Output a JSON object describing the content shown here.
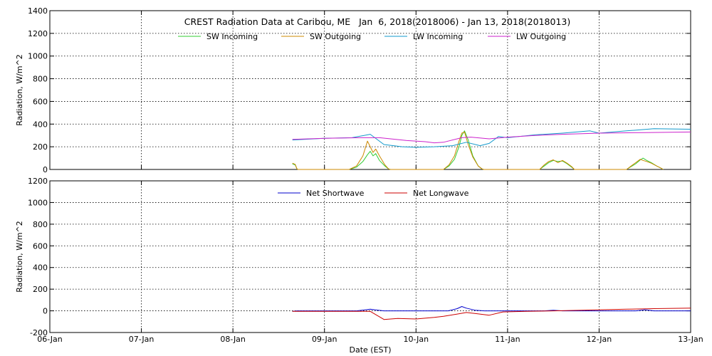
{
  "chart_data": [
    {
      "type": "line",
      "title": "CREST Radiation Data at Caribou, ME   Jan  6, 2018(2018006) - Jan 13, 2018(2018013)",
      "xlabel": "",
      "ylabel": "Radiation, W/m^2",
      "xlim": [
        0,
        7
      ],
      "ylim": [
        0,
        1400
      ],
      "yticks": [
        0,
        200,
        400,
        600,
        800,
        1000,
        1200,
        1400
      ],
      "x_tick_labels": [
        "06-Jan",
        "07-Jan",
        "08-Jan",
        "09-Jan",
        "10-Jan",
        "11-Jan",
        "12-Jan",
        "13-Jan"
      ],
      "grid": true,
      "legend": "top-center",
      "series": [
        {
          "name": "SW Incoming",
          "color": "#33cc33",
          "x": [
            2.65,
            2.68,
            2.7,
            2.71,
            3.27,
            3.35,
            3.42,
            3.47,
            3.5,
            3.53,
            3.56,
            3.6,
            3.66,
            3.7,
            3.72,
            4.3,
            4.36,
            4.42,
            4.47,
            4.5,
            4.53,
            4.57,
            4.62,
            4.68,
            4.72,
            4.74,
            5.35,
            5.4,
            5.45,
            5.5,
            5.55,
            5.6,
            5.65,
            5.7,
            5.73,
            6.3,
            6.35,
            6.4,
            6.45,
            6.48,
            6.52,
            6.57,
            6.63,
            6.68,
            6.7
          ],
          "y": [
            50,
            40,
            5,
            0,
            0,
            20,
            70,
            130,
            160,
            120,
            140,
            80,
            30,
            5,
            0,
            0,
            30,
            90,
            200,
            300,
            340,
            260,
            120,
            30,
            5,
            0,
            0,
            30,
            60,
            80,
            70,
            75,
            50,
            20,
            0,
            0,
            25,
            50,
            85,
            100,
            80,
            60,
            30,
            10,
            0
          ]
        },
        {
          "name": "SW Outgoing",
          "color": "#cc8800",
          "x": [
            2.65,
            2.68,
            2.7,
            2.71,
            3.27,
            3.35,
            3.42,
            3.47,
            3.5,
            3.53,
            3.56,
            3.6,
            3.66,
            3.7,
            3.72,
            4.3,
            4.36,
            4.42,
            4.47,
            4.5,
            4.53,
            4.57,
            4.62,
            4.68,
            4.72,
            4.74,
            5.35,
            5.4,
            5.45,
            5.5,
            5.55,
            5.6,
            5.65,
            5.7,
            5.73,
            6.3,
            6.35,
            6.4,
            6.45,
            6.48,
            6.52,
            6.57,
            6.63,
            6.68,
            6.7
          ],
          "y": [
            55,
            45,
            5,
            0,
            0,
            30,
            120,
            250,
            200,
            150,
            180,
            120,
            40,
            5,
            0,
            0,
            40,
            120,
            250,
            320,
            330,
            220,
            110,
            30,
            5,
            0,
            0,
            40,
            70,
            85,
            60,
            80,
            55,
            25,
            0,
            0,
            30,
            60,
            90,
            80,
            70,
            55,
            30,
            10,
            0
          ]
        },
        {
          "name": "LW Incoming",
          "color": "#1199cc",
          "x": [
            2.65,
            3.0,
            3.3,
            3.5,
            3.65,
            3.85,
            4.0,
            4.2,
            4.4,
            4.55,
            4.7,
            4.8,
            4.9,
            5.0,
            5.3,
            5.6,
            5.9,
            6.0,
            6.3,
            6.6,
            7.0
          ],
          "y": [
            260,
            275,
            280,
            310,
            220,
            200,
            195,
            200,
            210,
            240,
            210,
            230,
            290,
            280,
            305,
            320,
            340,
            320,
            340,
            360,
            355
          ]
        },
        {
          "name": "LW Outgoing",
          "color": "#cc22cc",
          "x": [
            2.65,
            3.0,
            3.4,
            3.6,
            3.9,
            4.1,
            4.2,
            4.3,
            4.5,
            4.6,
            4.8,
            5.0,
            5.3,
            5.6,
            6.0,
            6.5,
            7.0
          ],
          "y": [
            265,
            275,
            280,
            280,
            255,
            245,
            235,
            240,
            280,
            285,
            270,
            285,
            300,
            310,
            320,
            325,
            330
          ]
        }
      ]
    },
    {
      "type": "line",
      "title": "",
      "xlabel": "Date (EST)",
      "ylabel": "Radiation, W/m^2",
      "xlim": [
        0,
        7
      ],
      "ylim": [
        -200,
        1200
      ],
      "yticks": [
        -200,
        0,
        200,
        400,
        600,
        800,
        1000,
        1200
      ],
      "x_tick_labels": [
        "06-Jan",
        "07-Jan",
        "08-Jan",
        "09-Jan",
        "10-Jan",
        "11-Jan",
        "12-Jan",
        "13-Jan"
      ],
      "grid": true,
      "legend": "top-center",
      "series": [
        {
          "name": "Net Shortwave",
          "color": "#0000cc",
          "x": [
            2.65,
            2.7,
            3.35,
            3.45,
            3.5,
            3.55,
            3.65,
            4.35,
            4.45,
            4.5,
            4.55,
            4.65,
            4.75,
            5.4,
            5.5,
            5.6,
            6.4,
            6.5,
            6.6,
            7.0
          ],
          "y": [
            -5,
            0,
            0,
            10,
            15,
            10,
            0,
            0,
            20,
            40,
            25,
            5,
            0,
            0,
            5,
            0,
            0,
            10,
            0,
            0
          ]
        },
        {
          "name": "Net Longwave",
          "color": "#cc0000",
          "x": [
            2.65,
            3.0,
            3.5,
            3.65,
            3.8,
            4.0,
            4.2,
            4.3,
            4.45,
            4.55,
            4.65,
            4.8,
            4.95,
            5.2,
            5.5,
            5.8,
            6.0,
            6.3,
            6.6,
            7.0
          ],
          "y": [
            -5,
            -5,
            -5,
            -80,
            -70,
            -75,
            -60,
            -50,
            -30,
            -15,
            -25,
            -40,
            -10,
            -5,
            0,
            5,
            10,
            15,
            20,
            25
          ]
        }
      ]
    }
  ]
}
